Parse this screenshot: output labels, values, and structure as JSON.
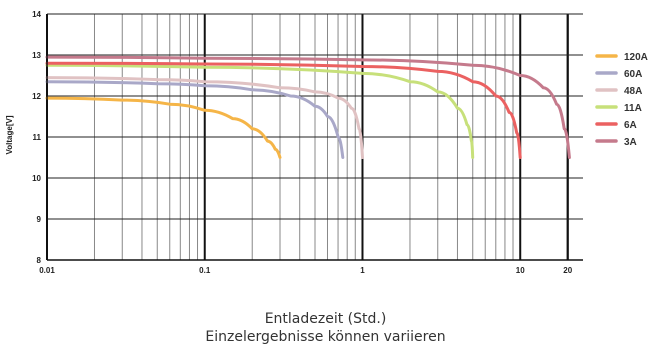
{
  "chart_data": {
    "type": "line",
    "xlabel": "",
    "ylabel": "Voltage[V]",
    "x_scale": "log",
    "xlim": [
      0.01,
      25
    ],
    "ylim": [
      8,
      14
    ],
    "x_ticks": [
      {
        "value": 0.01,
        "label": "0.01"
      },
      {
        "value": 0.1,
        "label": "0.1"
      },
      {
        "value": 1,
        "label": "1"
      },
      {
        "value": 10,
        "label": "10"
      },
      {
        "value": 20,
        "label": "20"
      }
    ],
    "y_ticks": [
      {
        "value": 8,
        "label": "8"
      },
      {
        "value": 9,
        "label": "9"
      },
      {
        "value": 10,
        "label": "10"
      },
      {
        "value": 11,
        "label": "11"
      },
      {
        "value": 12,
        "label": "12"
      },
      {
        "value": 13,
        "label": "13"
      },
      {
        "value": 14,
        "label": "14"
      }
    ],
    "grid": true,
    "legend_position": "right",
    "series": [
      {
        "name": "120A",
        "color": "#f5b548",
        "x": [
          0.01,
          0.03,
          0.06,
          0.1,
          0.15,
          0.2,
          0.25,
          0.28,
          0.3
        ],
        "y": [
          11.95,
          11.9,
          11.8,
          11.65,
          11.45,
          11.2,
          10.9,
          10.7,
          10.5
        ]
      },
      {
        "name": "60A",
        "color": "#a9a8c8",
        "x": [
          0.01,
          0.05,
          0.1,
          0.2,
          0.35,
          0.5,
          0.6,
          0.7,
          0.75
        ],
        "y": [
          12.35,
          12.3,
          12.25,
          12.15,
          12.0,
          11.75,
          11.5,
          11.0,
          10.5
        ]
      },
      {
        "name": "48A",
        "color": "#e0c2c3",
        "x": [
          0.01,
          0.05,
          0.1,
          0.3,
          0.5,
          0.7,
          0.85,
          0.95,
          1.0
        ],
        "y": [
          12.45,
          12.4,
          12.35,
          12.2,
          12.1,
          11.95,
          11.7,
          11.2,
          10.5
        ]
      },
      {
        "name": "11A",
        "color": "#c7e07a",
        "x": [
          0.01,
          0.1,
          1,
          2,
          3,
          4,
          4.6,
          4.9,
          5.0
        ],
        "y": [
          12.75,
          12.7,
          12.55,
          12.35,
          12.1,
          11.7,
          11.3,
          10.9,
          10.5
        ]
      },
      {
        "name": "6A",
        "color": "#eb6161",
        "x": [
          0.01,
          0.1,
          1,
          3,
          5,
          7,
          8.5,
          9.5,
          10
        ],
        "y": [
          12.8,
          12.78,
          12.72,
          12.6,
          12.35,
          12.0,
          11.6,
          11.1,
          10.5
        ]
      },
      {
        "name": "3A",
        "color": "#c57a8c",
        "x": [
          0.01,
          0.1,
          1,
          5,
          10,
          14,
          17,
          19,
          20.5
        ],
        "y": [
          12.95,
          12.92,
          12.88,
          12.75,
          12.5,
          12.2,
          11.8,
          11.2,
          10.5
        ]
      }
    ]
  },
  "captions": {
    "line1": "Entladezeit (Std.)",
    "line2": "Einzelergebnisse können variieren"
  }
}
